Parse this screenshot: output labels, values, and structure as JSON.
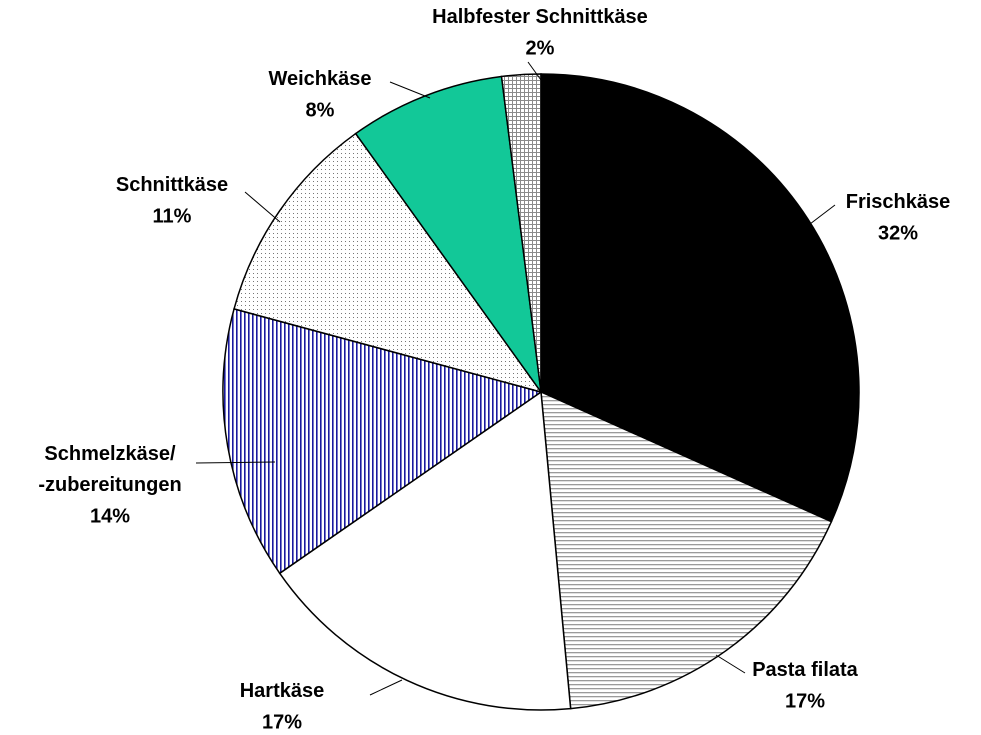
{
  "chart_data": {
    "type": "pie",
    "categories": [
      "Frischkäse",
      "Pasta filata",
      "Hartkäse",
      "Schmelzkäse/\n-zubereitungen",
      "Schnittkäse",
      "Weichkäse",
      "Halbfester Schnittkäse"
    ],
    "values": [
      32,
      17,
      17,
      14,
      11,
      8,
      2
    ],
    "value_labels": [
      "32%",
      "17%",
      "17%",
      "14%",
      "11%",
      "8%",
      "2%"
    ],
    "colors": [
      "#000000",
      "#9a9a9a",
      "#ffffff",
      "#1a1aa0",
      "#777777",
      "#12c898",
      "#8a8a8a"
    ],
    "patterns": [
      "solid",
      "horizontal",
      "solid",
      "vertical",
      "dots",
      "solid",
      "grid"
    ]
  }
}
